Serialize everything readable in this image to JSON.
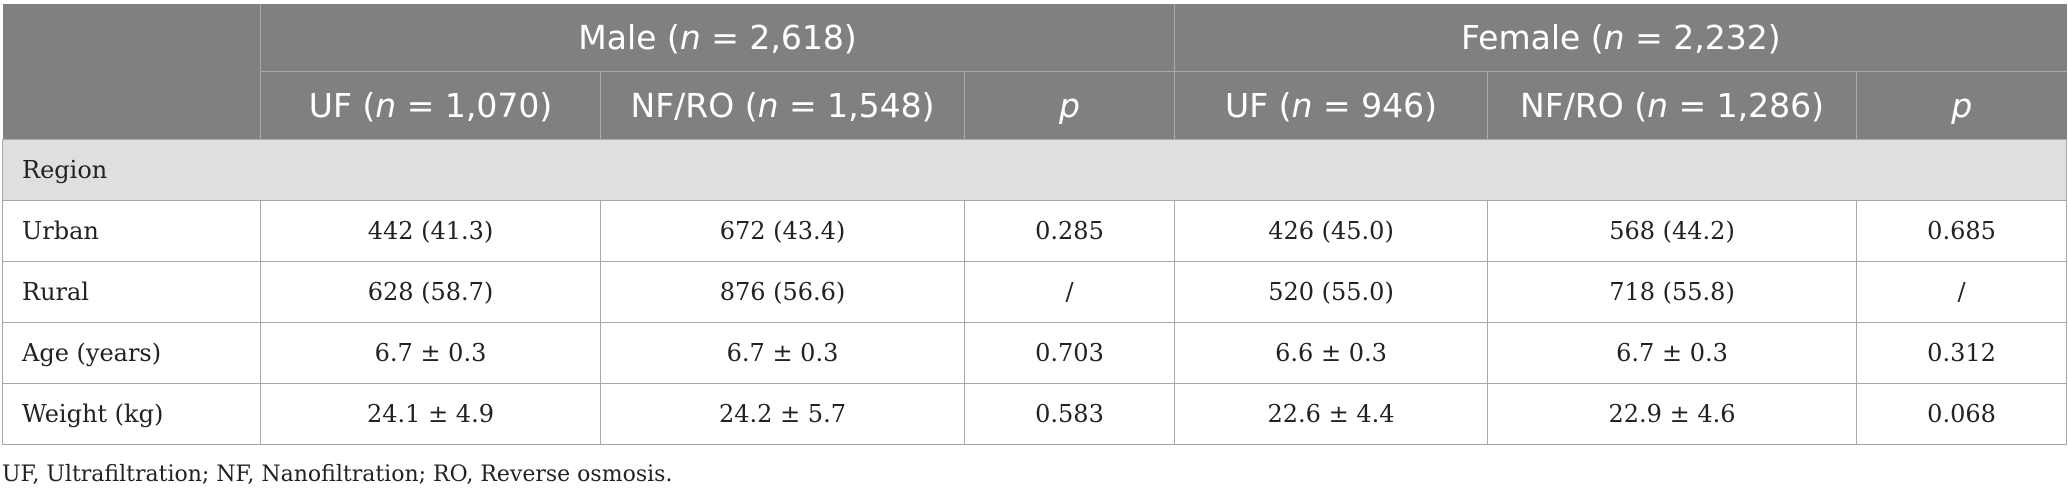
{
  "header": {
    "groups": [
      {
        "label_pre": "Male (",
        "n_symbol": "n",
        "label_post": " = 2,618)"
      },
      {
        "label_pre": "Female (",
        "n_symbol": "n",
        "label_post": " = 2,232)"
      }
    ],
    "subcolumns": [
      {
        "pre": "UF (",
        "n": "n",
        "post": " = 1,070)"
      },
      {
        "pre": "NF/RO (",
        "n": "n",
        "post": " = 1,548)"
      },
      {
        "p": "p"
      },
      {
        "pre": "UF (",
        "n": "n",
        "post": " = 946)"
      },
      {
        "pre": "NF/RO (",
        "n": "n",
        "post": " = 1,286)"
      },
      {
        "p": "p"
      }
    ]
  },
  "section": {
    "label": "Region"
  },
  "rows": [
    {
      "label": "Urban",
      "cells": [
        "442 (41.3)",
        "672 (43.4)",
        "0.285",
        "426 (45.0)",
        "568 (44.2)",
        "0.685"
      ]
    },
    {
      "label": "Rural",
      "cells": [
        "628 (58.7)",
        "876 (56.6)",
        "/",
        "520 (55.0)",
        "718 (55.8)",
        "/"
      ]
    },
    {
      "label": "Age (years)",
      "cells": [
        "6.7 ± 0.3",
        "6.7 ± 0.3",
        "0.703",
        "6.6 ± 0.3",
        "6.7 ± 0.3",
        "0.312"
      ]
    },
    {
      "label": "Weight (kg)",
      "cells": [
        "24.1 ± 4.9",
        "24.2 ± 5.7",
        "0.583",
        "22.6 ± 4.4",
        "22.9 ± 4.6",
        "0.068"
      ]
    }
  ],
  "footnote": "UF, Ultrafiltration; NF, Nanofiltration; RO, Reverse osmosis.",
  "colors": {
    "header_bg": "#7f8180",
    "section_bg": "#e0dfe0"
  }
}
